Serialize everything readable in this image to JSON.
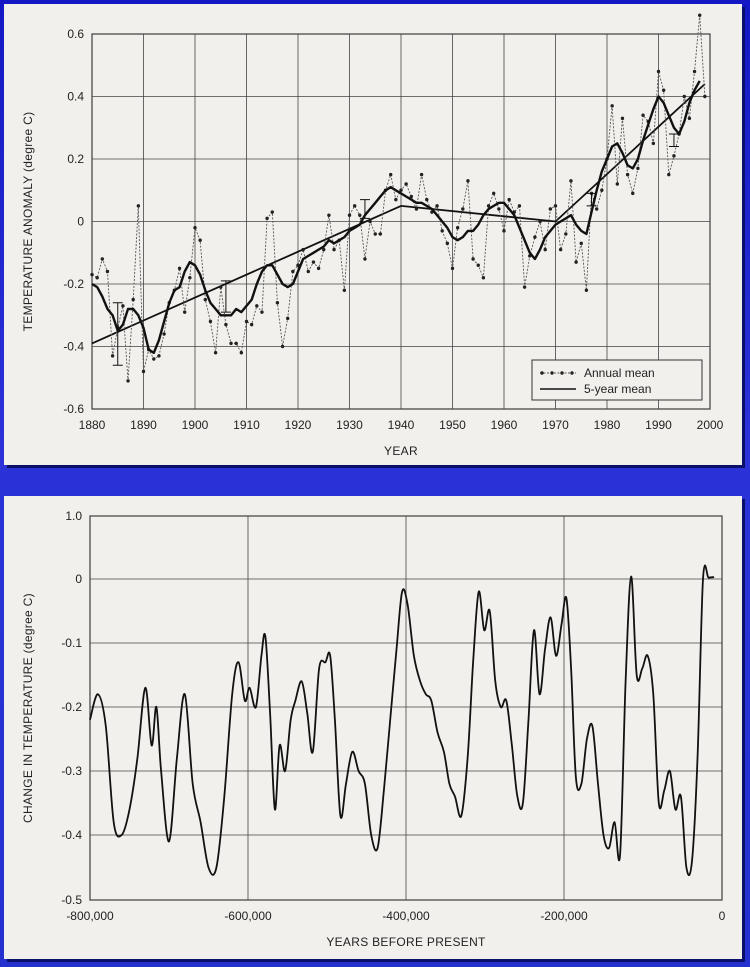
{
  "chart_data": [
    {
      "type": "line",
      "title": "",
      "xlabel": "YEAR",
      "ylabel": "TEMPERATURE ANOMALY (degree C)",
      "xlim": [
        1880,
        2000
      ],
      "ylim": [
        -0.6,
        0.6
      ],
      "xticks": [
        1880,
        1890,
        1900,
        1910,
        1920,
        1930,
        1940,
        1950,
        1960,
        1970,
        1980,
        1990,
        2000
      ],
      "yticks": [
        -0.6,
        -0.4,
        -0.2,
        0,
        0.2,
        0.4,
        0.6
      ],
      "ytick_labels": [
        "-0.6",
        "-0.4",
        "-0.2",
        "0",
        "0.2",
        "0.4",
        "0.6"
      ],
      "grid": true,
      "legend": {
        "position": "bottom-right",
        "entries": [
          "Annual mean",
          "5-year mean"
        ]
      },
      "series": [
        {
          "name": "Annual mean",
          "style": "dotted-with-markers",
          "x": [
            1880,
            1881,
            1882,
            1883,
            1884,
            1885,
            1886,
            1887,
            1888,
            1889,
            1890,
            1891,
            1892,
            1893,
            1894,
            1895,
            1896,
            1897,
            1898,
            1899,
            1900,
            1901,
            1902,
            1903,
            1904,
            1905,
            1906,
            1907,
            1908,
            1909,
            1910,
            1911,
            1912,
            1913,
            1914,
            1915,
            1916,
            1917,
            1918,
            1919,
            1920,
            1921,
            1922,
            1923,
            1924,
            1925,
            1926,
            1927,
            1928,
            1929,
            1930,
            1931,
            1932,
            1933,
            1934,
            1935,
            1936,
            1937,
            1938,
            1939,
            1940,
            1941,
            1942,
            1943,
            1944,
            1945,
            1946,
            1947,
            1948,
            1949,
            1950,
            1951,
            1952,
            1953,
            1954,
            1955,
            1956,
            1957,
            1958,
            1959,
            1960,
            1961,
            1962,
            1963,
            1964,
            1965,
            1966,
            1967,
            1968,
            1969,
            1970,
            1971,
            1972,
            1973,
            1974,
            1975,
            1976,
            1977,
            1978,
            1979,
            1980,
            1981,
            1982,
            1983,
            1984,
            1985,
            1986,
            1987,
            1988,
            1989,
            1990,
            1991,
            1992,
            1993,
            1994,
            1995,
            1996,
            1997,
            1998,
            1999
          ],
          "values": [
            -0.17,
            -0.18,
            -0.12,
            -0.16,
            -0.43,
            -0.34,
            -0.27,
            -0.51,
            -0.25,
            0.05,
            -0.48,
            -0.41,
            -0.44,
            -0.43,
            -0.36,
            -0.26,
            -0.22,
            -0.15,
            -0.29,
            -0.18,
            -0.02,
            -0.06,
            -0.25,
            -0.32,
            -0.42,
            -0.21,
            -0.33,
            -0.39,
            -0.39,
            -0.42,
            -0.32,
            -0.33,
            -0.27,
            -0.29,
            0.01,
            0.03,
            -0.26,
            -0.4,
            -0.31,
            -0.16,
            -0.14,
            -0.09,
            -0.16,
            -0.13,
            -0.15,
            -0.09,
            0.02,
            -0.09,
            -0.06,
            -0.22,
            0.02,
            0.05,
            0.02,
            -0.12,
            0.0,
            -0.04,
            -0.04,
            0.1,
            0.15,
            0.07,
            0.1,
            0.12,
            0.08,
            0.04,
            0.15,
            0.07,
            0.03,
            0.05,
            -0.03,
            -0.07,
            -0.15,
            -0.02,
            0.04,
            0.13,
            -0.12,
            -0.14,
            -0.18,
            0.05,
            0.09,
            0.04,
            -0.03,
            0.07,
            0.03,
            0.05,
            -0.21,
            -0.11,
            -0.05,
            0.0,
            -0.09,
            0.04,
            0.05,
            -0.09,
            -0.04,
            0.13,
            -0.13,
            -0.07,
            -0.22,
            0.09,
            0.04,
            0.1,
            0.2,
            0.37,
            0.12,
            0.33,
            0.15,
            0.09,
            0.17,
            0.34,
            0.32,
            0.25,
            0.48,
            0.42,
            0.15,
            0.21,
            0.28,
            0.4,
            0.33,
            0.48,
            0.66,
            0.4
          ]
        },
        {
          "name": "5-year mean",
          "style": "solid-thick",
          "x": [
            1880,
            1881,
            1882,
            1883,
            1884,
            1885,
            1886,
            1887,
            1888,
            1889,
            1890,
            1891,
            1892,
            1893,
            1894,
            1895,
            1896,
            1897,
            1898,
            1899,
            1900,
            1901,
            1902,
            1903,
            1904,
            1905,
            1906,
            1907,
            1908,
            1909,
            1910,
            1911,
            1912,
            1913,
            1914,
            1915,
            1916,
            1917,
            1918,
            1919,
            1920,
            1921,
            1922,
            1923,
            1924,
            1925,
            1926,
            1927,
            1928,
            1929,
            1930,
            1931,
            1932,
            1933,
            1934,
            1935,
            1936,
            1937,
            1938,
            1939,
            1940,
            1941,
            1942,
            1943,
            1944,
            1945,
            1946,
            1947,
            1948,
            1949,
            1950,
            1951,
            1952,
            1953,
            1954,
            1955,
            1956,
            1957,
            1958,
            1959,
            1960,
            1961,
            1962,
            1963,
            1964,
            1965,
            1966,
            1967,
            1968,
            1969,
            1970,
            1971,
            1972,
            1973,
            1974,
            1975,
            1976,
            1977,
            1978,
            1979,
            1980,
            1981,
            1982,
            1983,
            1984,
            1985,
            1986,
            1987,
            1988,
            1989,
            1990,
            1991,
            1992,
            1993,
            1994,
            1995,
            1996,
            1997,
            1998
          ],
          "values": [
            -0.2,
            -0.21,
            -0.24,
            -0.28,
            -0.3,
            -0.35,
            -0.33,
            -0.28,
            -0.28,
            -0.3,
            -0.34,
            -0.41,
            -0.42,
            -0.38,
            -0.32,
            -0.26,
            -0.22,
            -0.21,
            -0.16,
            -0.13,
            -0.14,
            -0.17,
            -0.22,
            -0.26,
            -0.28,
            -0.3,
            -0.3,
            -0.3,
            -0.28,
            -0.29,
            -0.27,
            -0.25,
            -0.2,
            -0.16,
            -0.14,
            -0.14,
            -0.17,
            -0.2,
            -0.21,
            -0.2,
            -0.16,
            -0.12,
            -0.11,
            -0.1,
            -0.09,
            -0.08,
            -0.06,
            -0.07,
            -0.06,
            -0.05,
            -0.03,
            -0.02,
            -0.01,
            0.02,
            0.04,
            0.06,
            0.08,
            0.1,
            0.11,
            0.1,
            0.09,
            0.08,
            0.07,
            0.06,
            0.06,
            0.05,
            0.04,
            0.02,
            0.0,
            -0.02,
            -0.05,
            -0.06,
            -0.05,
            -0.03,
            -0.03,
            -0.01,
            0.02,
            0.04,
            0.05,
            0.06,
            0.06,
            0.04,
            0.02,
            -0.02,
            -0.06,
            -0.1,
            -0.12,
            -0.09,
            -0.05,
            -0.03,
            -0.01,
            0.0,
            0.01,
            0.02,
            -0.01,
            -0.03,
            -0.04,
            0.03,
            0.1,
            0.16,
            0.2,
            0.24,
            0.25,
            0.22,
            0.18,
            0.17,
            0.2,
            0.26,
            0.31,
            0.36,
            0.4,
            0.38,
            0.34,
            0.3,
            0.28,
            0.32,
            0.38,
            0.42,
            0.45
          ]
        },
        {
          "name": "",
          "style": "trend-line",
          "x": [
            1880,
            1940,
            1970,
            1999
          ],
          "values": [
            -0.39,
            0.05,
            0.0,
            0.44
          ]
        }
      ],
      "error_bars": [
        {
          "x": 1885,
          "center": -0.36,
          "half_width": 0.1
        },
        {
          "x": 1906,
          "center": -0.24,
          "half_width": 0.05
        },
        {
          "x": 1933,
          "center": 0.04,
          "half_width": 0.03
        },
        {
          "x": 1977,
          "center": 0.07,
          "half_width": 0.02
        },
        {
          "x": 1993,
          "center": 0.26,
          "half_width": 0.02
        }
      ]
    },
    {
      "type": "line",
      "title": "",
      "xlabel": "YEARS BEFORE PRESENT",
      "ylabel": "CHANGE IN TEMPERATURE (degree C)",
      "xlim": [
        -800000,
        0
      ],
      "ylim": [
        -0.5,
        1.0
      ],
      "xticks": [
        -800000,
        -600000,
        -400000,
        -200000,
        0
      ],
      "xtick_labels": [
        "-800,000",
        "-600,000",
        "-400,000",
        "-200,000",
        "0"
      ],
      "yticks": [
        1.0,
        0,
        -0.1,
        -0.2,
        -0.3,
        -0.4,
        -0.5
      ],
      "ytick_labels": [
        "1.0",
        "0",
        "-0.1",
        "-0.2",
        "-0.3",
        "-0.4",
        "-0.5"
      ],
      "grid": true,
      "series": [
        {
          "name": "",
          "style": "solid",
          "x": [
            -800000,
            -790000,
            -780000,
            -770000,
            -760000,
            -750000,
            -740000,
            -730000,
            -722000,
            -716000,
            -710000,
            -700000,
            -690000,
            -680000,
            -670000,
            -660000,
            -650000,
            -640000,
            -630000,
            -620000,
            -612000,
            -604000,
            -598000,
            -590000,
            -583000,
            -578000,
            -572000,
            -566000,
            -560000,
            -553000,
            -546000,
            -540000,
            -532000,
            -525000,
            -518000,
            -510000,
            -502000,
            -496000,
            -490000,
            -483000,
            -476000,
            -468000,
            -460000,
            -452000,
            -444000,
            -436000,
            -428000,
            -420000,
            -412000,
            -405000,
            -398000,
            -390000,
            -382000,
            -375000,
            -368000,
            -360000,
            -352000,
            -345000,
            -338000,
            -330000,
            -322000,
            -315000,
            -308000,
            -301000,
            -294000,
            -287000,
            -280000,
            -273000,
            -266000,
            -259000,
            -252000,
            -245000,
            -238000,
            -231000,
            -224000,
            -217000,
            -210000,
            -203000,
            -197000,
            -191000,
            -185000,
            -178000,
            -171000,
            -164000,
            -157000,
            -150000,
            -143000,
            -136000,
            -129000,
            -122000,
            -115000,
            -108000,
            -101000,
            -94000,
            -87000,
            -80000,
            -73000,
            -66000,
            -59000,
            -52000,
            -45000,
            -38000,
            -31000,
            -24000,
            -17000,
            -10000
          ],
          "values": [
            -0.22,
            -0.18,
            -0.23,
            -0.38,
            -0.4,
            -0.36,
            -0.28,
            -0.17,
            -0.26,
            -0.2,
            -0.3,
            -0.41,
            -0.28,
            -0.18,
            -0.32,
            -0.38,
            -0.45,
            -0.45,
            -0.34,
            -0.18,
            -0.13,
            -0.19,
            -0.17,
            -0.2,
            -0.12,
            -0.09,
            -0.21,
            -0.36,
            -0.26,
            -0.3,
            -0.22,
            -0.19,
            -0.16,
            -0.21,
            -0.27,
            -0.14,
            -0.13,
            -0.12,
            -0.22,
            -0.37,
            -0.32,
            -0.27,
            -0.3,
            -0.32,
            -0.4,
            -0.42,
            -0.33,
            -0.22,
            -0.11,
            -0.02,
            -0.04,
            -0.12,
            -0.16,
            -0.18,
            -0.19,
            -0.24,
            -0.27,
            -0.32,
            -0.34,
            -0.37,
            -0.28,
            -0.13,
            -0.02,
            -0.08,
            -0.05,
            -0.16,
            -0.2,
            -0.19,
            -0.26,
            -0.34,
            -0.35,
            -0.22,
            -0.08,
            -0.18,
            -0.11,
            -0.06,
            -0.12,
            -0.07,
            -0.03,
            -0.14,
            -0.31,
            -0.32,
            -0.25,
            -0.23,
            -0.32,
            -0.4,
            -0.42,
            -0.38,
            -0.43,
            -0.16,
            0.04,
            -0.15,
            -0.14,
            -0.12,
            -0.18,
            -0.35,
            -0.33,
            -0.3,
            -0.36,
            -0.34,
            -0.45,
            -0.44,
            -0.28,
            0.0,
            0.02,
            0.03
          ]
        }
      ]
    }
  ]
}
